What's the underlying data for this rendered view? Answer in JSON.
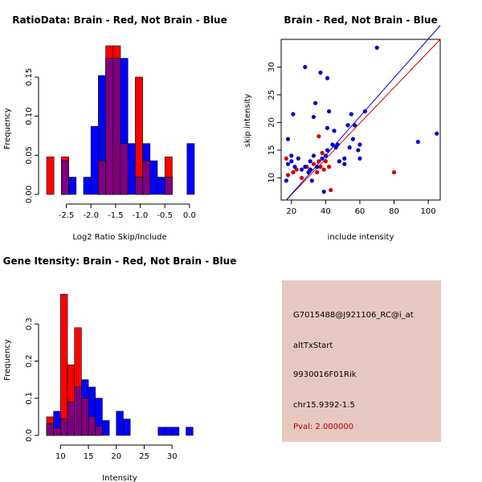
{
  "chart_data": [
    {
      "type": "histogram",
      "title": "RatioData: Brain - Red, Not Brain - Blue",
      "xlabel": "Log2 Ratio Skip/Include",
      "ylabel": "Frequency",
      "xlim": [
        -2.9,
        0.1
      ],
      "ylim": [
        0,
        0.19
      ],
      "xticks": [
        -2.5,
        -2.0,
        -1.5,
        -1.0,
        -0.5,
        0.0
      ],
      "xtick_labels": [
        "-2.5",
        "-2.0",
        "-1.5",
        "-1.0",
        "-0.5",
        "0.0"
      ],
      "yticks": [
        0.0,
        0.05,
        0.1,
        0.15
      ],
      "ytick_labels": [
        "0.00",
        "0.05",
        "0.10",
        "0.15"
      ],
      "bin_edges": [
        -2.9,
        -2.75,
        -2.6,
        -2.45,
        -2.3,
        -2.15,
        -2.0,
        -1.85,
        -1.7,
        -1.55,
        -1.4,
        -1.25,
        -1.1,
        -0.95,
        -0.8,
        -0.65,
        -0.5,
        -0.35,
        -0.2,
        -0.05,
        0.1
      ],
      "series": [
        {
          "name": "Brain",
          "color": "#ff0000",
          "values": [
            0.048,
            0,
            0.048,
            0,
            0,
            0,
            0,
            0.043,
            0.19,
            0.19,
            0.065,
            0,
            0.15,
            0.043,
            0,
            0,
            0.048,
            0,
            0,
            0
          ]
        },
        {
          "name": "Not Brain",
          "color": "#0000ff",
          "values": [
            0,
            0,
            0.043,
            0.022,
            0,
            0.022,
            0.087,
            0.152,
            0.174,
            0.174,
            0.174,
            0.065,
            0.022,
            0.065,
            0.043,
            0.022,
            0.022,
            0,
            0,
            0.065
          ]
        }
      ]
    },
    {
      "type": "scatter",
      "title": "Brain - Red, Not Brain - Blue",
      "xlabel": "include intensity",
      "ylabel": "skip intensity",
      "xlim": [
        14,
        107
      ],
      "ylim": [
        6,
        35
      ],
      "xticks": [
        20,
        40,
        60,
        80,
        100
      ],
      "xtick_labels": [
        "20",
        "40",
        "60",
        "80",
        "100"
      ],
      "yticks": [
        10,
        15,
        20,
        25,
        30
      ],
      "ytick_labels": [
        "10",
        "15",
        "20",
        "25",
        "30"
      ],
      "series": [
        {
          "name": "Brain",
          "color": "#cc0000",
          "points": [
            [
              17,
              13.5
            ],
            [
              18,
              10.5
            ],
            [
              21,
              11
            ],
            [
              23,
              11.5
            ],
            [
              26,
              10
            ],
            [
              29,
              12
            ],
            [
              31,
              11.5
            ],
            [
              33,
              12.5
            ],
            [
              35,
              11
            ],
            [
              36,
              13
            ],
            [
              37,
              12
            ],
            [
              38,
              14.5
            ],
            [
              39,
              11.5
            ],
            [
              40,
              13
            ],
            [
              42,
              12
            ],
            [
              43,
              7.8
            ],
            [
              36,
              17.5
            ],
            [
              80,
              11
            ]
          ],
          "fit": [
            [
              17,
              6
            ],
            [
              107,
              35
            ]
          ]
        },
        {
          "name": "Not Brain",
          "color": "#0000cc",
          "points": [
            [
              70,
              33.5
            ],
            [
              28,
              30
            ],
            [
              37,
              29
            ],
            [
              41,
              28
            ],
            [
              34,
              23.5
            ],
            [
              21,
              21.5
            ],
            [
              33,
              21
            ],
            [
              42,
              22
            ],
            [
              55,
              21.5
            ],
            [
              63,
              22
            ],
            [
              18,
              17
            ],
            [
              41,
              19
            ],
            [
              45,
              18.5
            ],
            [
              53,
              19.5
            ],
            [
              57,
              19.5
            ],
            [
              44,
              16
            ],
            [
              47,
              16
            ],
            [
              56,
              17
            ],
            [
              60,
              16
            ],
            [
              20,
              14
            ],
            [
              24,
              13.5
            ],
            [
              28,
              12
            ],
            [
              31,
              13
            ],
            [
              33,
              14
            ],
            [
              35,
              12
            ],
            [
              38,
              13.5
            ],
            [
              40,
              14
            ],
            [
              41,
              15
            ],
            [
              46,
              15.5
            ],
            [
              48,
              13
            ],
            [
              51,
              13.5
            ],
            [
              54,
              15.5
            ],
            [
              59,
              15
            ],
            [
              18,
              12.5
            ],
            [
              22,
              12
            ],
            [
              26,
              11.5
            ],
            [
              31,
              11.5
            ],
            [
              17,
              9.5
            ],
            [
              20,
              13
            ],
            [
              30,
              11
            ],
            [
              32,
              9.5
            ],
            [
              39,
              7.5
            ],
            [
              51,
              12.5
            ],
            [
              60,
              13.5
            ],
            [
              94,
              16.5
            ],
            [
              105,
              18
            ]
          ],
          "fit": [
            [
              17,
              6
            ],
            [
              107,
              37.5
            ]
          ]
        }
      ]
    },
    {
      "type": "histogram",
      "title": "Gene Itensity: Brain - Red, Not Brain - Blue",
      "xlabel": "Intensity",
      "ylabel": "Frequency",
      "xlim": [
        7.5,
        34
      ],
      "ylim": [
        0,
        0.4
      ],
      "xticks": [
        10,
        15,
        20,
        25,
        30
      ],
      "xtick_labels": [
        "10",
        "15",
        "20",
        "25",
        "30"
      ],
      "yticks": [
        0.0,
        0.1,
        0.2,
        0.3
      ],
      "ytick_labels": [
        "0.0",
        "0.1",
        "0.2",
        "0.3"
      ],
      "bin_edges": [
        7.5,
        8.75,
        10,
        11.25,
        12.5,
        13.75,
        15,
        16.25,
        17.5,
        18.75,
        20,
        21.25,
        22.5,
        23.75,
        25,
        26.25,
        27.5,
        28.75,
        30,
        31.25,
        32.5,
        33.75
      ],
      "series": [
        {
          "name": "Brain",
          "color": "#ff0000",
          "values": [
            0.05,
            0.02,
            0.38,
            0.19,
            0.29,
            0.1,
            0.05,
            0.025,
            0,
            0,
            0,
            0,
            0,
            0,
            0,
            0,
            0,
            0,
            0,
            0,
            0
          ]
        },
        {
          "name": "Not Brain",
          "color": "#0000ff",
          "values": [
            0.032,
            0.065,
            0.044,
            0.09,
            0.13,
            0.15,
            0.13,
            0.1,
            0.04,
            0,
            0.065,
            0.044,
            0,
            0,
            0,
            0,
            0.022,
            0.022,
            0.022,
            0,
            0.022
          ]
        }
      ]
    }
  ],
  "info": {
    "probe_id": "G7015488@J921106_RC@i_at",
    "event_type": "altTxStart",
    "gene_id": "9930016F01Rik",
    "location": "chr15.9392-1.5",
    "pval": "Pval: 2.000000"
  },
  "colors": {
    "brain": "#ff0000",
    "not_brain": "#0000ff",
    "overlap": "#800080",
    "info_bg": "#e7c8c0",
    "pval_text": "#b00000"
  }
}
